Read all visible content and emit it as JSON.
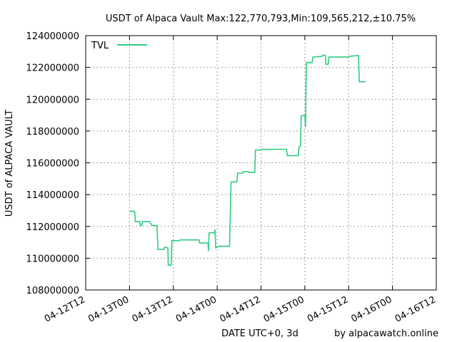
{
  "chart_data": {
    "type": "line",
    "title": "USDT of Alpaca Vault Max:122,770,793,Min:109,565,212,±10.75%",
    "xlabel": "DATE UTC+0, 3d",
    "ylabel": "USDT of ALPACA VAULT",
    "credit": "by alpacawatch.online",
    "x_ticks": [
      "04-12T12",
      "04-13T00",
      "04-13T12",
      "04-14T00",
      "04-14T12",
      "04-15T00",
      "04-15T12",
      "04-16T00",
      "04-16T12"
    ],
    "x_range_hours": [
      0,
      96
    ],
    "y_ticks": [
      108000000,
      110000000,
      112000000,
      114000000,
      116000000,
      118000000,
      120000000,
      122000000,
      124000000
    ],
    "y_tick_labels": [
      "108000000",
      "110000000",
      "112000000",
      "114000000",
      "116000000",
      "118000000",
      "120000000",
      "122000000",
      "124000000"
    ],
    "ylim": [
      108000000,
      124000000
    ],
    "grid": true,
    "legend_position": "top-left",
    "series": [
      {
        "name": "TVL",
        "color": "#2ecc80",
        "points": [
          [
            12.0,
            112950000
          ],
          [
            13.4,
            112950000
          ],
          [
            13.6,
            112300000
          ],
          [
            14.8,
            112300000
          ],
          [
            15.0,
            112050000
          ],
          [
            15.3,
            112050000
          ],
          [
            15.5,
            112300000
          ],
          [
            17.5,
            112300000
          ],
          [
            18.0,
            112100000
          ],
          [
            18.5,
            112050000
          ],
          [
            19.5,
            112050000
          ],
          [
            19.8,
            110550000
          ],
          [
            21.4,
            110550000
          ],
          [
            21.6,
            110700000
          ],
          [
            22.5,
            110650000
          ],
          [
            22.6,
            109565000
          ],
          [
            23.4,
            109565000
          ],
          [
            23.6,
            111100000
          ],
          [
            25.6,
            111100000
          ],
          [
            25.8,
            111150000
          ],
          [
            31.0,
            111150000
          ],
          [
            31.2,
            110950000
          ],
          [
            33.5,
            110950000
          ],
          [
            33.6,
            110450000
          ],
          [
            33.8,
            111600000
          ],
          [
            35.3,
            111600000
          ],
          [
            35.4,
            111800000
          ],
          [
            35.6,
            110650000
          ],
          [
            36.5,
            110750000
          ],
          [
            39.4,
            110750000
          ],
          [
            39.6,
            112700000
          ],
          [
            39.8,
            114800000
          ],
          [
            41.4,
            114800000
          ],
          [
            41.6,
            115350000
          ],
          [
            43.0,
            115350000
          ],
          [
            43.2,
            115450000
          ],
          [
            44.5,
            115450000
          ],
          [
            44.7,
            115400000
          ],
          [
            46.3,
            115400000
          ],
          [
            46.5,
            116800000
          ],
          [
            48.0,
            116800000
          ],
          [
            48.2,
            116850000
          ],
          [
            55.0,
            116850000
          ],
          [
            55.2,
            116450000
          ],
          [
            58.2,
            116450000
          ],
          [
            58.4,
            117000000
          ],
          [
            58.8,
            117050000
          ],
          [
            59.0,
            118950000
          ],
          [
            60.0,
            119000000
          ],
          [
            60.2,
            118250000
          ],
          [
            60.4,
            122300000
          ],
          [
            62.0,
            122300000
          ],
          [
            62.2,
            122650000
          ],
          [
            64.8,
            122700000
          ],
          [
            65.0,
            122770793
          ],
          [
            65.6,
            122770793
          ],
          [
            65.8,
            122200000
          ],
          [
            66.4,
            122200000
          ],
          [
            66.6,
            122650000
          ],
          [
            72.0,
            122650000
          ],
          [
            72.2,
            122700000
          ],
          [
            74.7,
            122750000
          ],
          [
            74.9,
            121100000
          ],
          [
            76.6,
            121100000
          ]
        ]
      }
    ]
  }
}
